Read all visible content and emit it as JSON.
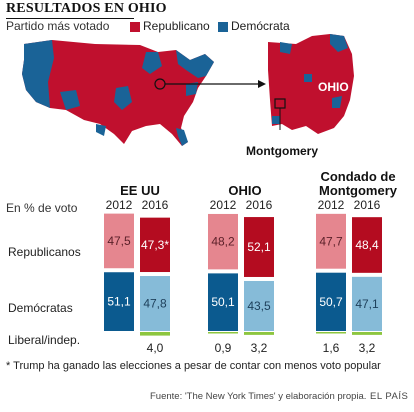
{
  "header": {
    "title": "RESULTADOS EN OHIO",
    "subtitle": "Partido más votado",
    "legend": [
      {
        "label": "Republicano",
        "color": "#c0102e"
      },
      {
        "label": "Demócrata",
        "color": "#1a6397"
      }
    ]
  },
  "maps": {
    "state_label": "OHIO",
    "county_label": "Montgomery"
  },
  "colors": {
    "rep_2012": "#e5868f",
    "rep_2016": "#b40c20",
    "dem_2012": "#0b5a8f",
    "dem_2016": "#86bbd8",
    "liberal": "#8dc63f",
    "map_rep": "#c0102e",
    "map_dem": "#1a6397"
  },
  "units_label": "En % de voto",
  "row_labels": {
    "rep": "Republicanos",
    "dem": "Demócratas",
    "lib": "Liberal/indep."
  },
  "chart_data": {
    "type": "bar",
    "stacked": true,
    "units": "% de voto",
    "groups": [
      {
        "title": "EE UU",
        "years": [
          "2012",
          "2016"
        ],
        "republicanos": [
          47.5,
          47.3
        ],
        "republicanos_labels": [
          "47,5",
          "47,3*"
        ],
        "democratas": [
          51.1,
          47.8
        ],
        "democratas_labels": [
          "51,1",
          "47,8"
        ],
        "liberal": [
          null,
          4.0
        ],
        "liberal_labels": [
          "",
          "4,0"
        ]
      },
      {
        "title": "OHIO",
        "years": [
          "2012",
          "2016"
        ],
        "republicanos": [
          48.2,
          52.1
        ],
        "republicanos_labels": [
          "48,2",
          "52,1"
        ],
        "democratas": [
          50.1,
          43.5
        ],
        "democratas_labels": [
          "50,1",
          "43,5"
        ],
        "liberal": [
          0.9,
          3.2
        ],
        "liberal_labels": [
          "0,9",
          "3,2"
        ]
      },
      {
        "title": "Condado de Montgomery",
        "title_lines": [
          "Condado de",
          "Montgomery"
        ],
        "years": [
          "2012",
          "2016"
        ],
        "republicanos": [
          47.7,
          48.4
        ],
        "republicanos_labels": [
          "47,7",
          "48,4"
        ],
        "democratas": [
          50.7,
          47.1
        ],
        "democratas_labels": [
          "50,7",
          "47,1"
        ],
        "liberal": [
          1.6,
          3.2
        ],
        "liberal_labels": [
          "1,6",
          "3,2"
        ]
      }
    ]
  },
  "footnote": "* Trump ha ganado las elecciones a pesar de contar con menos voto popular",
  "source": "Fuente: 'The New York Times' y elaboración propia.",
  "brand": "EL PAÍS"
}
